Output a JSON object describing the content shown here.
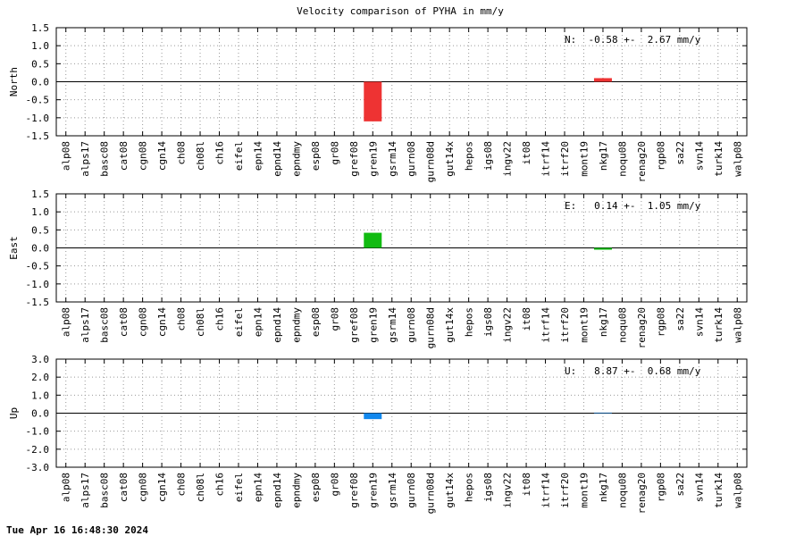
{
  "title": "Velocity comparison of PYHA in mm/y",
  "footer": "Tue Apr 16 16:48:30 2024",
  "chart_data": [
    {
      "type": "bar",
      "ylabel": "North",
      "annotation": "N:  -0.58 +-  2.67 mm/y",
      "categories": [
        "alp08",
        "alps17",
        "basc08",
        "cat08",
        "cgn08",
        "cgn14",
        "ch08",
        "ch08l",
        "ch16",
        "eifel",
        "epn14",
        "epnd14",
        "epndmy",
        "esp08",
        "gr08",
        "gref08",
        "gren19",
        "gsrm14",
        "gurn08",
        "gurn08d",
        "gut14x",
        "hepos",
        "igs08",
        "ingv22",
        "it08",
        "itrf14",
        "itrf20",
        "mont19",
        "nkg17",
        "noqu08",
        "renag20",
        "rgp08",
        "sa22",
        "svn14",
        "turk14",
        "walp08"
      ],
      "values": [
        0,
        0,
        0,
        0,
        0,
        0,
        0,
        0,
        0,
        0,
        0,
        0,
        0,
        0,
        0,
        0,
        -1.1,
        0,
        0,
        0,
        0,
        0,
        0,
        0,
        0,
        0,
        0,
        0,
        0.1,
        0,
        0,
        0,
        0,
        0,
        0,
        0
      ],
      "color": "#ee3333",
      "ylim": [
        -1.5,
        1.5
      ],
      "yticks": [
        -1.5,
        {
          "value": -1,
          "label": "-1.0"
        },
        -0.5,
        {
          "value": 0,
          "label": "0.0"
        },
        0.5,
        {
          "value": 1,
          "label": "1.0"
        },
        1.5
      ],
      "grid": true
    },
    {
      "type": "bar",
      "ylabel": "East",
      "annotation": "E:   0.14 +-  1.05 mm/y",
      "categories": [
        "alp08",
        "alps17",
        "basc08",
        "cat08",
        "cgn08",
        "cgn14",
        "ch08",
        "ch08l",
        "ch16",
        "eifel",
        "epn14",
        "epnd14",
        "epndmy",
        "esp08",
        "gr08",
        "gref08",
        "gren19",
        "gsrm14",
        "gurn08",
        "gurn08d",
        "gut14x",
        "hepos",
        "igs08",
        "ingv22",
        "it08",
        "itrf14",
        "itrf20",
        "mont19",
        "nkg17",
        "noqu08",
        "renag20",
        "rgp08",
        "sa22",
        "svn14",
        "turk14",
        "walp08"
      ],
      "values": [
        0,
        0,
        0,
        0,
        0,
        0,
        0,
        0,
        0,
        0,
        0,
        0,
        0,
        0,
        0,
        0,
        0.42,
        0,
        0,
        0,
        0,
        0,
        0,
        0,
        0,
        0,
        0,
        0,
        -0.05,
        0,
        0,
        0,
        0,
        0,
        0,
        0
      ],
      "color": "#11bb11",
      "ylim": [
        -1.5,
        1.5
      ],
      "yticks": [
        -1.5,
        {
          "value": -1,
          "label": "-1.0"
        },
        -0.5,
        {
          "value": 0,
          "label": "0.0"
        },
        0.5,
        {
          "value": 1,
          "label": "1.0"
        },
        1.5
      ],
      "grid": true
    },
    {
      "type": "bar",
      "ylabel": "Up",
      "annotation": "U:   8.87 +-  0.68 mm/y",
      "categories": [
        "alp08",
        "alps17",
        "basc08",
        "cat08",
        "cgn08",
        "cgn14",
        "ch08",
        "ch08l",
        "ch16",
        "eifel",
        "epn14",
        "epnd14",
        "epndmy",
        "esp08",
        "gr08",
        "gref08",
        "gren19",
        "gsrm14",
        "gurn08",
        "gurn08d",
        "gut14x",
        "hepos",
        "igs08",
        "ingv22",
        "it08",
        "itrf14",
        "itrf20",
        "mont19",
        "nkg17",
        "noqu08",
        "renag20",
        "rgp08",
        "sa22",
        "svn14",
        "turk14",
        "walp08"
      ],
      "values": [
        0,
        0,
        0,
        0,
        0,
        0,
        0,
        0,
        0,
        0,
        0,
        0,
        0,
        0,
        0,
        0,
        -0.33,
        0,
        0,
        0,
        0,
        0,
        0,
        0,
        0,
        0,
        0,
        0,
        0.03,
        0,
        0,
        0,
        0,
        0,
        0,
        0
      ],
      "color": "#1188ee",
      "ylim": [
        -3,
        3
      ],
      "yticks": [
        {
          "value": -3,
          "label": "-3.0"
        },
        {
          "value": -2,
          "label": "-2.0"
        },
        {
          "value": -1,
          "label": "-1.0"
        },
        {
          "value": 0,
          "label": "0.0"
        },
        {
          "value": 1,
          "label": "1.0"
        },
        {
          "value": 2,
          "label": "2.0"
        },
        {
          "value": 3,
          "label": "3.0"
        }
      ],
      "grid": true
    }
  ]
}
